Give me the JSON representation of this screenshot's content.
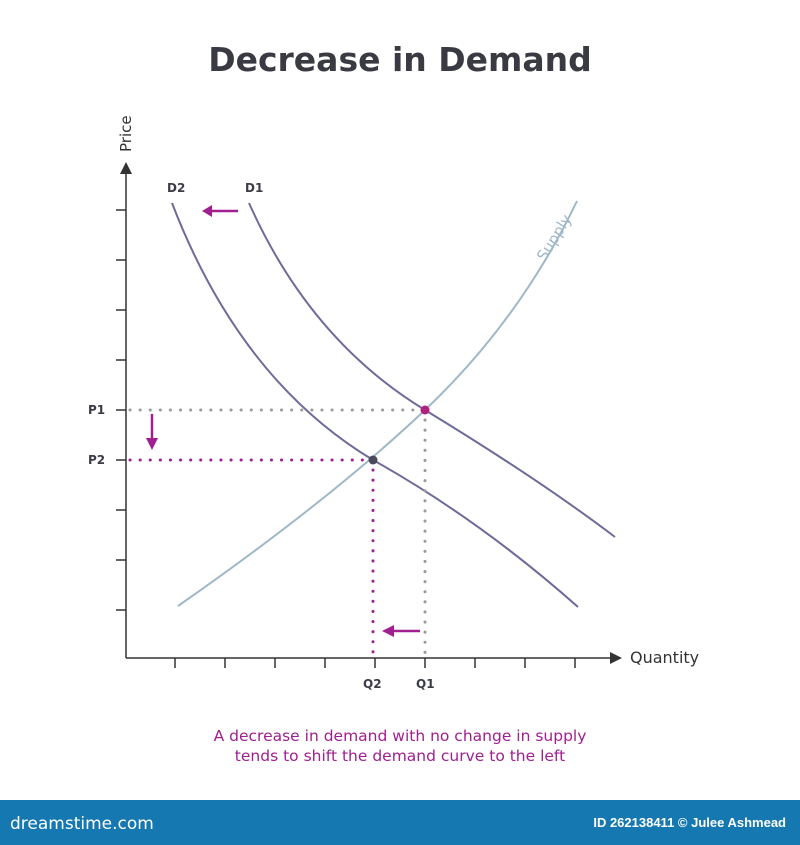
{
  "title": "Decrease in Demand",
  "axes": {
    "y_label": "Price",
    "x_label": "Quantity"
  },
  "curves": {
    "d1": "D1",
    "d2": "D2",
    "supply": "Supply"
  },
  "price_labels": {
    "p1": "P1",
    "p2": "P2"
  },
  "quantity_labels": {
    "q1": "Q1",
    "q2": "Q2"
  },
  "caption": {
    "line1": "A decrease in demand with no change in supply",
    "line2": "tends to shift the demand curve to the left"
  },
  "colors": {
    "demand": "#6e6a9a",
    "supply": "#9fb8c8",
    "accent": "#a0208f",
    "guide": "#9a9a9a",
    "footer": "#1578b0"
  },
  "footer": {
    "brand": "dreamstime.com",
    "credit": "ID 262138411 © Julee Ashmead"
  }
}
